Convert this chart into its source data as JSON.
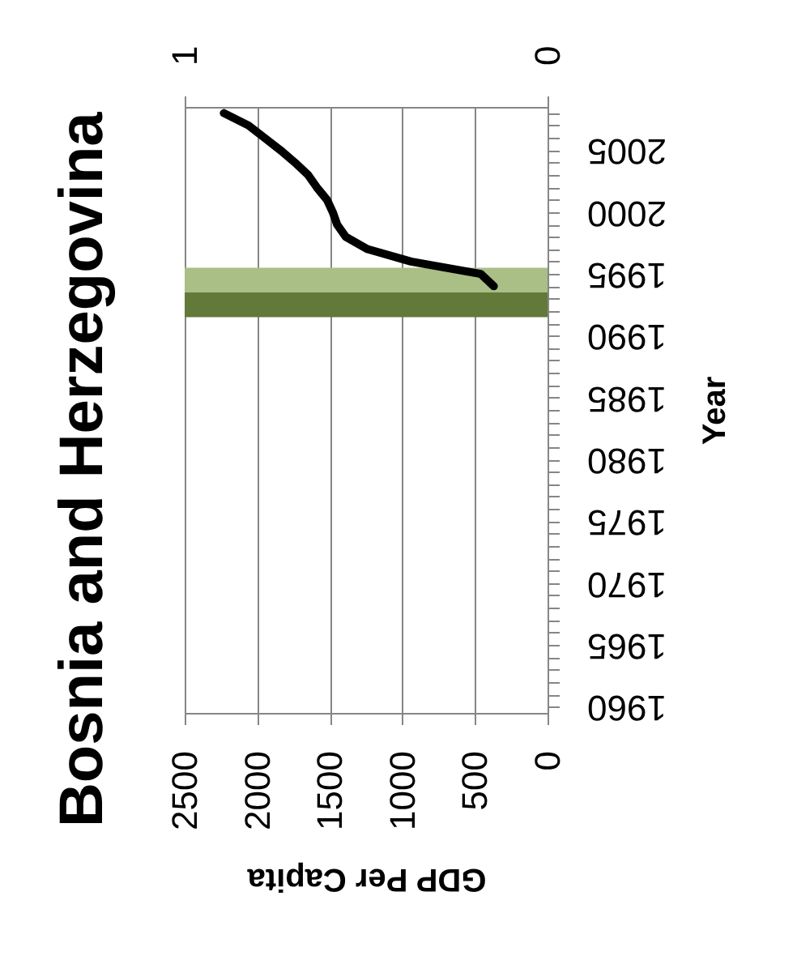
{
  "chart_data": {
    "type": "line",
    "title": "Bosnia and Herzegovina",
    "xlabel": "GDP Per Capita",
    "ylabel": "Year",
    "orientation": "horizontal",
    "x": [
      1994,
      1995,
      1996,
      1997,
      1998,
      1999,
      2000,
      2001,
      2002,
      2003,
      2004,
      2005,
      2006,
      2007,
      2008
    ],
    "series": [
      {
        "color": "#000000",
        "values": [
          370,
          460,
          940,
          1240,
          1390,
          1450,
          1480,
          1520,
          1590,
          1650,
          1740,
          1840,
          1950,
          2060,
          2230
        ]
      }
    ],
    "xlim": [
      2500,
      0
    ],
    "xticks": [
      0,
      500,
      1000,
      1500,
      2000,
      2500
    ],
    "ylim": [
      1959.5,
      2008.5
    ],
    "yticks": [
      1960,
      {
        "value": 1961,
        "label": null
      },
      {
        "value": 1962,
        "label": null
      },
      {
        "value": 1963,
        "label": null
      },
      {
        "value": 1964,
        "label": null
      },
      1965,
      {
        "value": 1966,
        "label": null
      },
      {
        "value": 1967,
        "label": null
      },
      {
        "value": 1968,
        "label": null
      },
      {
        "value": 1969,
        "label": null
      },
      1970,
      {
        "value": 1971,
        "label": null
      },
      {
        "value": 1972,
        "label": null
      },
      {
        "value": 1973,
        "label": null
      },
      {
        "value": 1974,
        "label": null
      },
      1975,
      {
        "value": 1976,
        "label": null
      },
      {
        "value": 1977,
        "label": null
      },
      {
        "value": 1978,
        "label": null
      },
      {
        "value": 1979,
        "label": null
      },
      1980,
      {
        "value": 1981,
        "label": null
      },
      {
        "value": 1982,
        "label": null
      },
      {
        "value": 1983,
        "label": null
      },
      {
        "value": 1984,
        "label": null
      },
      1985,
      {
        "value": 1986,
        "label": null
      },
      {
        "value": 1987,
        "label": null
      },
      {
        "value": 1988,
        "label": null
      },
      {
        "value": 1989,
        "label": null
      },
      1990,
      {
        "value": 1991,
        "label": null
      },
      {
        "value": 1992,
        "label": null
      },
      {
        "value": 1993,
        "label": null
      },
      {
        "value": 1994,
        "label": null
      },
      1995,
      {
        "value": 1996,
        "label": null
      },
      {
        "value": 1997,
        "label": null
      },
      {
        "value": 1998,
        "label": null
      },
      {
        "value": 1999,
        "label": null
      },
      2000,
      {
        "value": 2001,
        "label": null
      },
      {
        "value": 2002,
        "label": null
      },
      {
        "value": 2003,
        "label": null
      },
      {
        "value": 2004,
        "label": null
      },
      2005,
      {
        "value": 2006,
        "label": null
      },
      {
        "value": 2007,
        "label": null
      },
      {
        "value": 2008,
        "label": null
      }
    ],
    "x2lim": [
      1,
      0
    ],
    "x2ticks": [
      0,
      1
    ],
    "bands": [
      {
        "axis": "y",
        "from": 1991.5,
        "to": 1993.5,
        "color": "#62793a"
      },
      {
        "axis": "y",
        "from": 1993.5,
        "to": 1995.5,
        "color": "#a9bf86"
      }
    ],
    "grid": "x"
  }
}
